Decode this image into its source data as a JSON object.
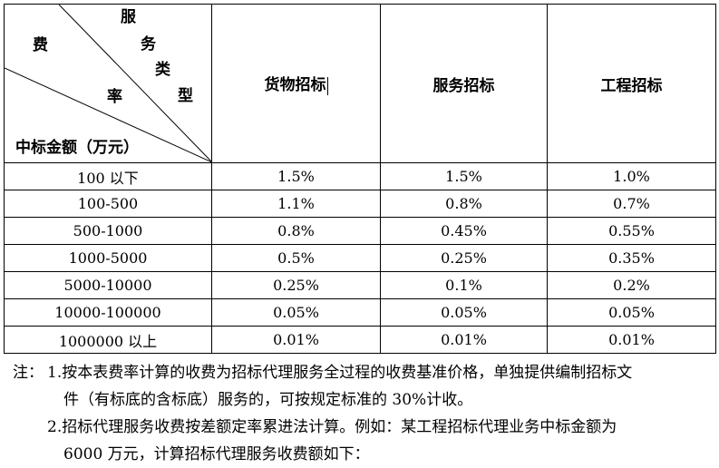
{
  "corner": {
    "fee_char": "费",
    "rate_char": "率",
    "service_type_chars": [
      "服",
      "务",
      "类",
      "型"
    ],
    "amount_label": "中标金额（万元）"
  },
  "columns": [
    "货物招标",
    "服务招标",
    "工程招标"
  ],
  "rows": [
    {
      "range": "100 以下",
      "goods": "1.5%",
      "service": "1.5%",
      "engineering": "1.0%"
    },
    {
      "range": "100-500",
      "goods": "1.1%",
      "service": "0.8%",
      "engineering": "0.7%"
    },
    {
      "range": "500-1000",
      "goods": "0.8%",
      "service": "0.45%",
      "engineering": "0.55%"
    },
    {
      "range": "1000-5000",
      "goods": "0.5%",
      "service": "0.25%",
      "engineering": "0.35%"
    },
    {
      "range": "5000-10000",
      "goods": "0.25%",
      "service": "0.1%",
      "engineering": "0.2%"
    },
    {
      "range": "10000-100000",
      "goods": "0.05%",
      "service": "0.05%",
      "engineering": "0.05%"
    },
    {
      "range": "1000000 以上",
      "goods": "0.01%",
      "service": "0.01%",
      "engineering": "0.01%"
    }
  ],
  "notes": {
    "prefix": "注：",
    "note1_line1": "1.按本表费率计算的收费为招标代理服务全过程的收费基准价格，单独提供编制招标文",
    "note1_line2": "件（有标底的含标底）服务的，可按规定标准的 30%计收。",
    "note2_line1": "2.招标代理服务收费按差额定率累进法计算。例如：某工程招标代理业务中标金额为",
    "note2_line2": "6000 万元，计算招标代理服务收费额如下："
  }
}
